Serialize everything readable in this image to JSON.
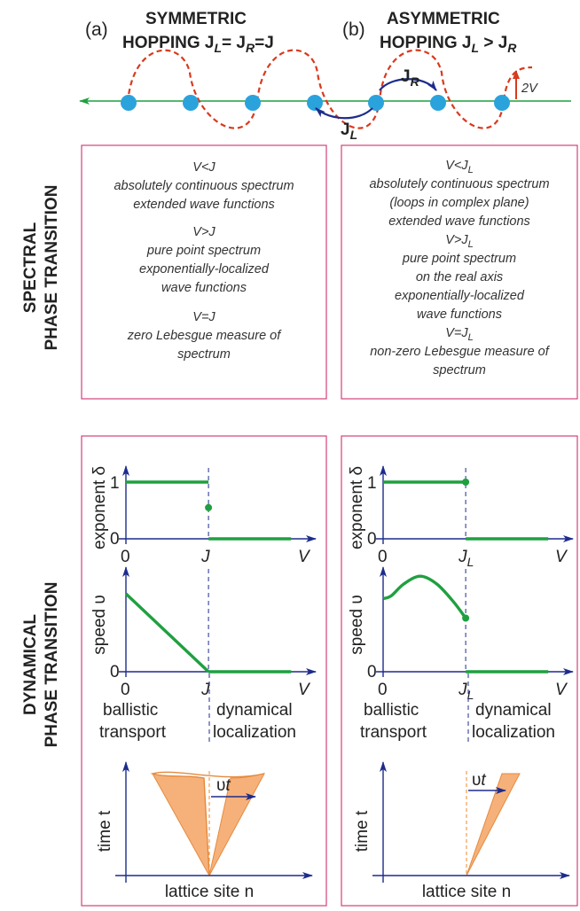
{
  "colors": {
    "frame": "#d6407a",
    "curve": "#1fa040",
    "axis": "#1d2c8c",
    "site": "#2aa3dc",
    "potential": "#d83a1e",
    "cone_fill": "#f6b17a",
    "cone_edge": "#e58a3e"
  },
  "header": {
    "a_tag": "(a)",
    "a_line1": "SYMMETRIC",
    "a_line2": "HOPPING J",
    "a_sub1": "L",
    "a_eq1": "= J",
    "a_sub2": "R",
    "a_eq2": "=J",
    "b_tag": "(b)",
    "b_line1": "ASYMMETRIC",
    "b_line2": "HOPPING J",
    "b_sub1": "L",
    "b_gt": " > J",
    "b_sub2": "R"
  },
  "lattice": {
    "JR": "J",
    "JR_sub": "R",
    "JL": "J",
    "JL_sub": "L",
    "amp": "2V"
  },
  "side_labels": {
    "spectral_1": "SPECTRAL",
    "spectral_2": "PHASE TRANSITION",
    "dynamical_1": "DYNAMICAL",
    "dynamical_2": "PHASE TRANSITION"
  },
  "spectral_a": [
    "V<J",
    "absolutely continuous spectrum",
    "extended wave functions",
    "V>J",
    "pure point spectrum",
    "exponentially-localized",
    "wave functions",
    "V=J",
    "zero Lebesgue measure of",
    "spectrum"
  ],
  "spectral_b": {
    "cond1": "V<J",
    "cond1_sub": "L",
    "l1": "absolutely continuous spectrum",
    "l2": "(loops in complex plane)",
    "l3": "extended wave functions",
    "cond2": "V>J",
    "cond2_sub": "L",
    "l4": "pure point spectrum",
    "l5": "on the real axis",
    "l6": "exponentially-localized",
    "l7": "wave functions",
    "cond3": "V=J",
    "cond3_sub": "L",
    "l8": "non-zero Lebesgue measure of",
    "l9": "spectrum"
  },
  "chart_data": [
    {
      "panel": "a",
      "type": "line",
      "ylabel": "exponent δ",
      "xlabel": "V",
      "xticks": [
        "0",
        "J"
      ],
      "yticks": [
        "0",
        "1"
      ],
      "series": [
        {
          "x": [
            0,
            1
          ],
          "y": [
            1,
            1
          ]
        },
        {
          "x": [
            1,
            2
          ],
          "y": [
            0,
            0
          ]
        }
      ],
      "point": {
        "x": 1,
        "y": 0.55
      }
    },
    {
      "panel": "b",
      "type": "line",
      "ylabel": "exponent δ",
      "xlabel": "V",
      "xticks": [
        "0",
        "J",
        "L"
      ],
      "yticks": [
        "0",
        "1"
      ],
      "series": [
        {
          "x": [
            0,
            1
          ],
          "y": [
            1,
            1
          ]
        },
        {
          "x": [
            1,
            2
          ],
          "y": [
            0,
            0
          ]
        }
      ],
      "point": {
        "x": 1,
        "y": 1
      }
    },
    {
      "panel": "a",
      "type": "line",
      "ylabel": "speed υ",
      "xlabel": "V",
      "xticks": [
        "0",
        "J"
      ],
      "yticks": [
        "0"
      ],
      "series": [
        {
          "x": [
            0,
            1
          ],
          "y": [
            0.8,
            0
          ]
        },
        {
          "x": [
            1,
            2
          ],
          "y": [
            0,
            0
          ]
        }
      ]
    },
    {
      "panel": "b",
      "type": "line",
      "ylabel": "speed υ",
      "xlabel": "V",
      "xticks": [
        "0",
        "J",
        "L"
      ],
      "yticks": [
        "0"
      ],
      "series": [
        {
          "x": [
            0,
            0.1,
            0.25,
            0.45,
            0.65,
            0.85,
            1
          ],
          "y": [
            0.75,
            0.78,
            0.9,
            0.98,
            0.9,
            0.72,
            0.55
          ]
        },
        {
          "x": [
            1,
            2
          ],
          "y": [
            0,
            0
          ]
        }
      ],
      "point": {
        "x": 1,
        "y": 0.55
      }
    }
  ],
  "transport_labels": {
    "left_1": "ballistic",
    "left_2": "transport",
    "right_1": "dynamical",
    "right_2": "localization"
  },
  "light_cone": {
    "ylabel": "time t",
    "xlabel": "lattice site n",
    "vt_prefix": "υ",
    "vt_suffix": "t"
  }
}
